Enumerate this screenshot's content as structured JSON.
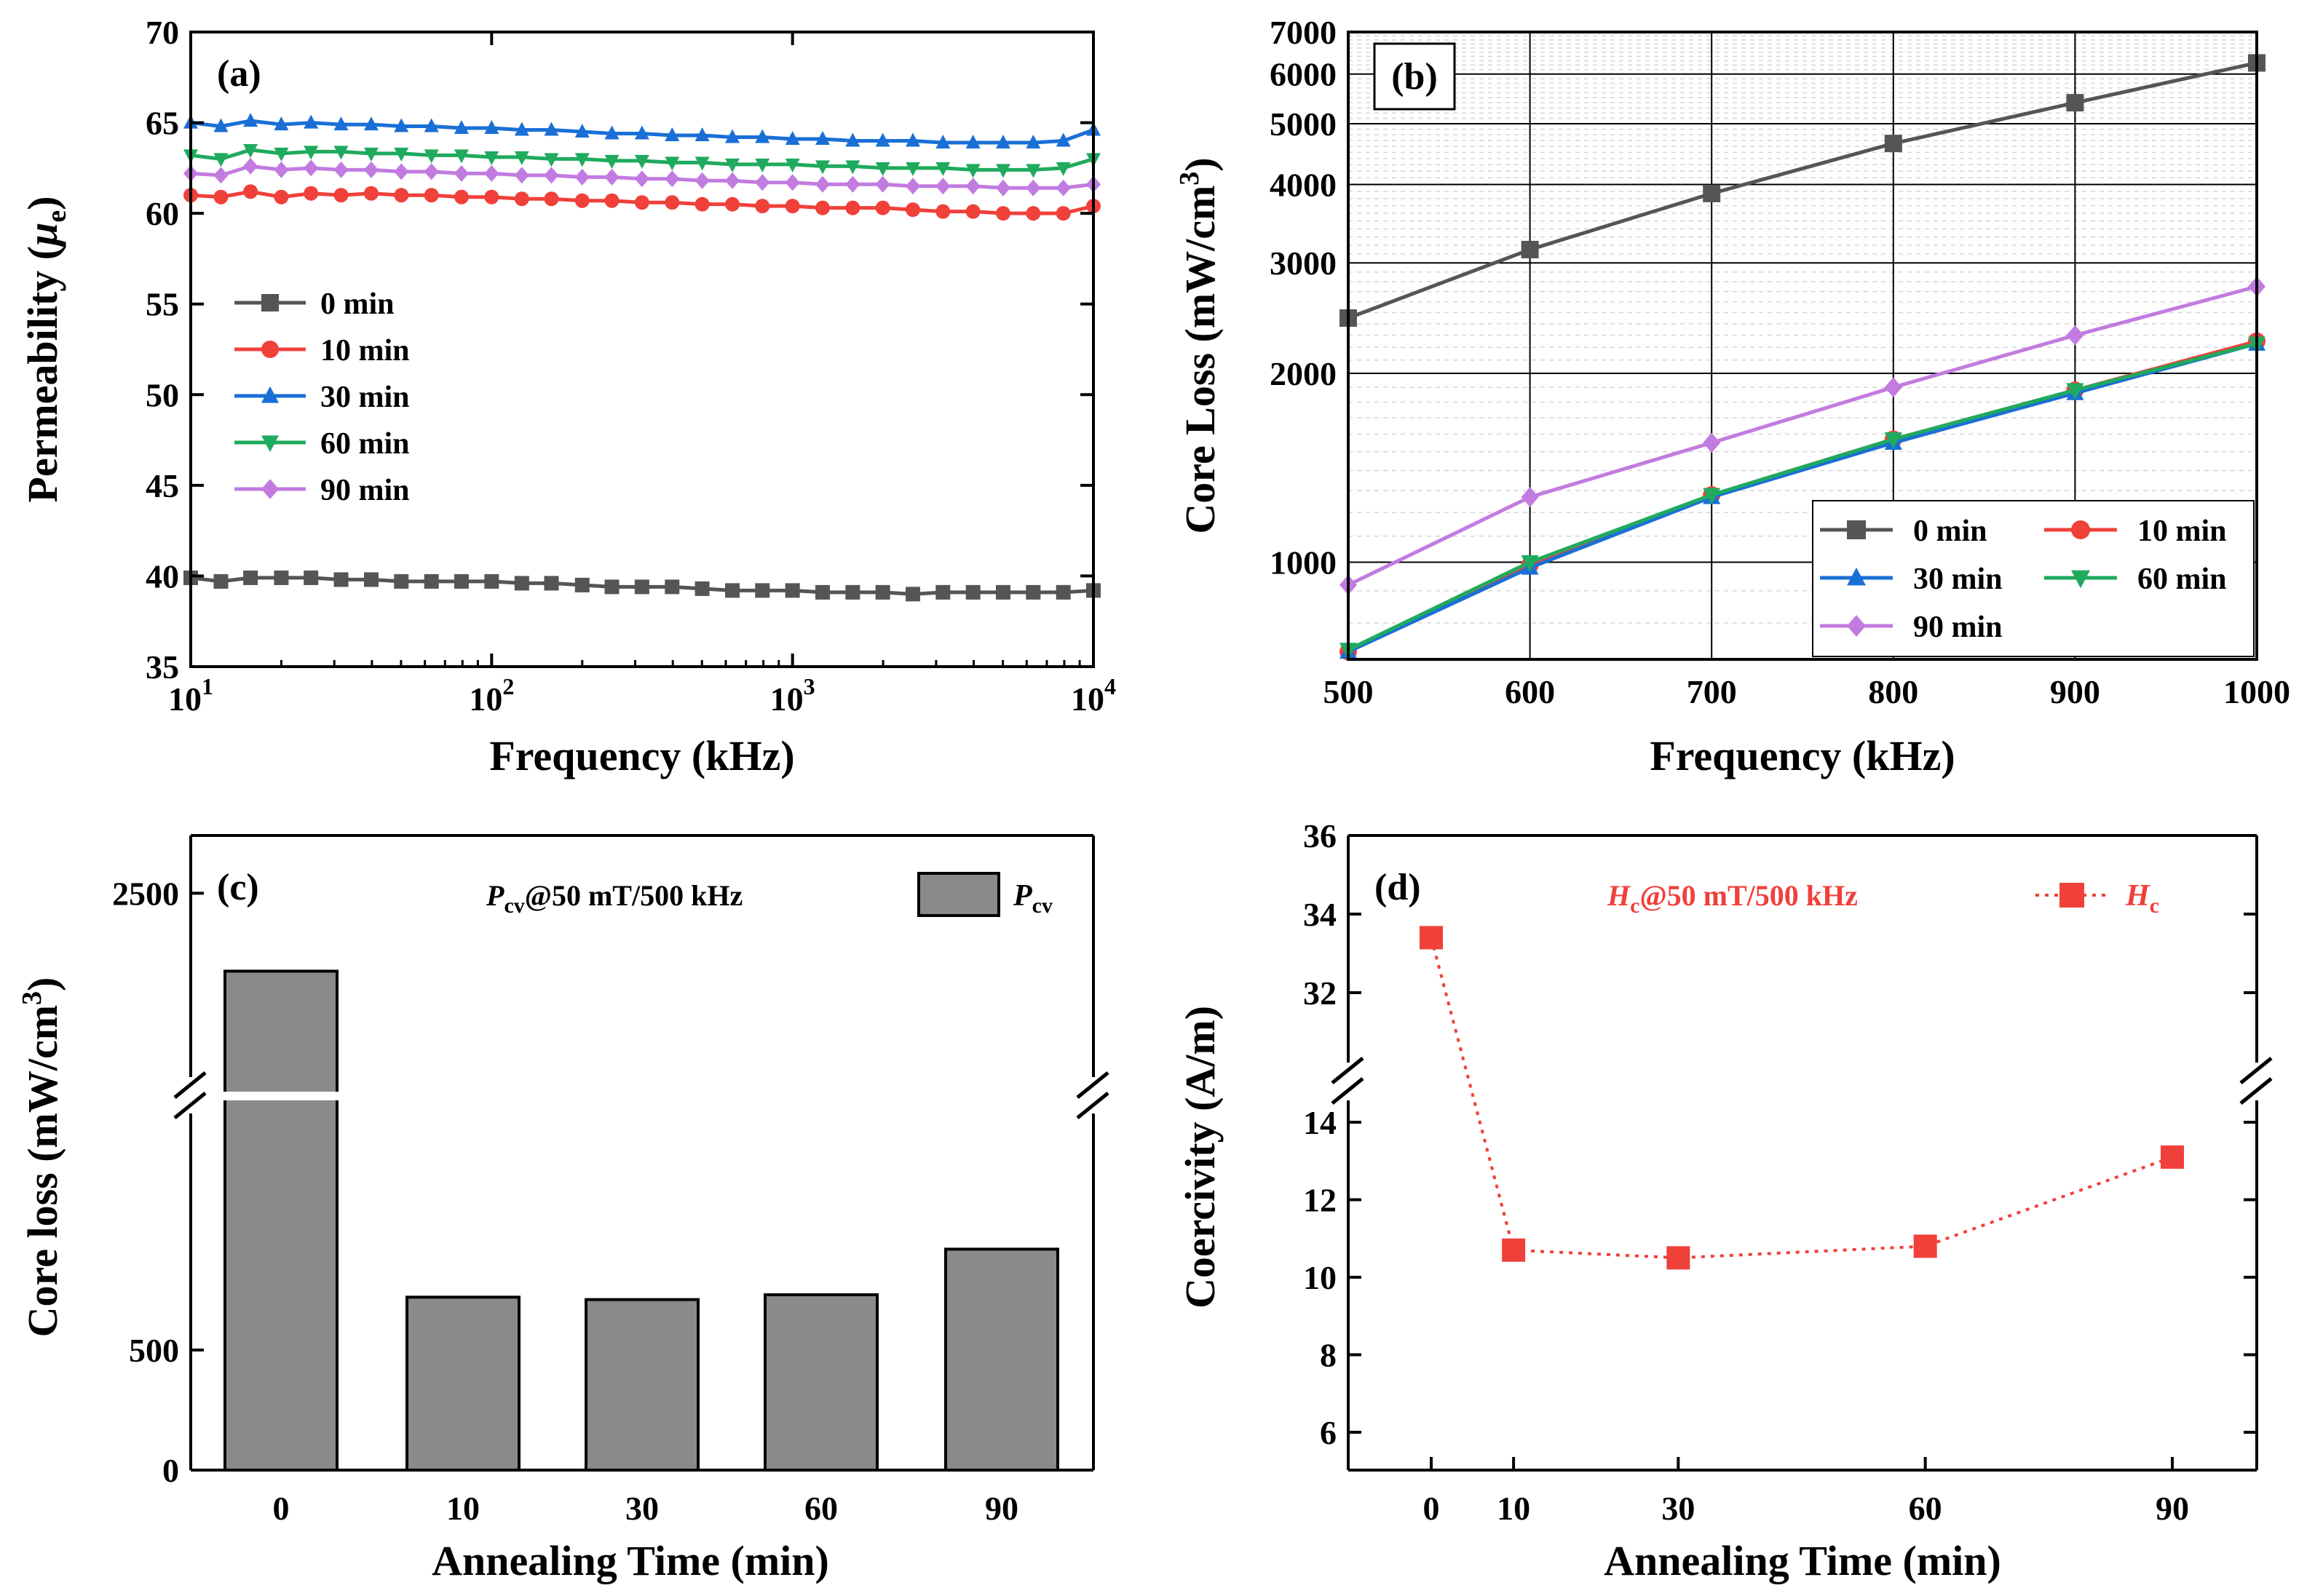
{
  "chart_data": [
    {
      "panel": "(a)",
      "type": "line",
      "xscale": "log",
      "xlabel": "Frequency (kHz)",
      "ylabel_main": "Permeability (",
      "ylabel_sym": "μ",
      "ylabel_sub": "e",
      "ylabel_end": ")",
      "xlim": [
        10,
        10000
      ],
      "ylim": [
        35,
        70
      ],
      "xticks": [
        {
          "value": 10,
          "base": "10",
          "exp": "1"
        },
        {
          "value": 100,
          "base": "10",
          "exp": "2"
        },
        {
          "value": 1000,
          "base": "10",
          "exp": "3"
        },
        {
          "value": 10000,
          "base": "10",
          "exp": "4"
        }
      ],
      "yticks": [
        35,
        40,
        45,
        50,
        55,
        60,
        65,
        70
      ],
      "x": [
        10,
        12.6,
        15.8,
        20,
        25.1,
        31.6,
        39.8,
        50.1,
        63.1,
        79.4,
        100,
        126,
        158,
        200,
        251,
        316,
        398,
        501,
        631,
        794,
        1000,
        1259,
        1585,
        1995,
        2512,
        3162,
        3981,
        5012,
        6310,
        7943,
        10000
      ],
      "series": [
        {
          "name": "0 min",
          "color": "#555555",
          "marker": "square",
          "values": [
            39.9,
            39.7,
            39.9,
            39.9,
            39.9,
            39.8,
            39.8,
            39.7,
            39.7,
            39.7,
            39.7,
            39.6,
            39.6,
            39.5,
            39.4,
            39.4,
            39.4,
            39.3,
            39.2,
            39.2,
            39.2,
            39.1,
            39.1,
            39.1,
            39.0,
            39.1,
            39.1,
            39.1,
            39.1,
            39.1,
            39.2
          ]
        },
        {
          "name": "10 min",
          "color": "#f0403a",
          "marker": "circle",
          "values": [
            61.0,
            60.9,
            61.2,
            60.9,
            61.1,
            61.0,
            61.1,
            61.0,
            61.0,
            60.9,
            60.9,
            60.8,
            60.8,
            60.7,
            60.7,
            60.6,
            60.6,
            60.5,
            60.5,
            60.4,
            60.4,
            60.3,
            60.3,
            60.3,
            60.2,
            60.1,
            60.1,
            60.0,
            60.0,
            60.0,
            60.4
          ]
        },
        {
          "name": "30 min",
          "color": "#1a6fd6",
          "marker": "triangle",
          "values": [
            65.0,
            64.8,
            65.1,
            64.9,
            65.0,
            64.9,
            64.9,
            64.8,
            64.8,
            64.7,
            64.7,
            64.6,
            64.6,
            64.5,
            64.4,
            64.4,
            64.3,
            64.3,
            64.2,
            64.2,
            64.1,
            64.1,
            64.0,
            64.0,
            64.0,
            63.9,
            63.9,
            63.9,
            63.9,
            64.0,
            64.6
          ]
        },
        {
          "name": "60 min",
          "color": "#1faa5e",
          "marker": "triangle-down",
          "values": [
            63.2,
            63.0,
            63.5,
            63.3,
            63.4,
            63.4,
            63.3,
            63.3,
            63.2,
            63.2,
            63.1,
            63.1,
            63.0,
            63.0,
            62.9,
            62.9,
            62.8,
            62.8,
            62.7,
            62.7,
            62.7,
            62.6,
            62.6,
            62.5,
            62.5,
            62.5,
            62.4,
            62.4,
            62.4,
            62.5,
            63.0
          ]
        },
        {
          "name": "90 min",
          "color": "#c27be0",
          "marker": "diamond",
          "values": [
            62.2,
            62.1,
            62.6,
            62.4,
            62.5,
            62.4,
            62.4,
            62.3,
            62.3,
            62.2,
            62.2,
            62.1,
            62.1,
            62.0,
            62.0,
            61.9,
            61.9,
            61.8,
            61.8,
            61.7,
            61.7,
            61.6,
            61.6,
            61.6,
            61.5,
            61.5,
            61.5,
            61.4,
            61.4,
            61.4,
            61.6
          ]
        }
      ]
    },
    {
      "panel": "(b)",
      "type": "line",
      "yscale": "log",
      "xlabel": "Frequency (kHz)",
      "ylabel_main": "Core Loss (mW/cm",
      "ylabel_sup": "3",
      "ylabel_end": ")",
      "xlim": [
        500,
        1000
      ],
      "ylim": [
        700,
        7000
      ],
      "xticks": [
        500,
        600,
        700,
        800,
        900,
        1000
      ],
      "yticks": [
        1000,
        2000,
        3000,
        4000,
        5000,
        6000,
        7000
      ],
      "grid": true,
      "x": [
        500,
        600,
        700,
        800,
        900,
        1000
      ],
      "series": [
        {
          "name": "0 min",
          "color": "#555555",
          "marker": "square",
          "values": [
            2450,
            3150,
            3870,
            4650,
            5400,
            6250
          ]
        },
        {
          "name": "10 min",
          "color": "#f0403a",
          "marker": "circle",
          "values": [
            720,
            990,
            1280,
            1570,
            1880,
            2250
          ]
        },
        {
          "name": "30 min",
          "color": "#1a6fd6",
          "marker": "triangle",
          "values": [
            720,
            980,
            1270,
            1550,
            1860,
            2230
          ]
        },
        {
          "name": "60 min",
          "color": "#1faa5e",
          "marker": "triangle-down",
          "values": [
            725,
            1000,
            1280,
            1570,
            1880,
            2230
          ]
        },
        {
          "name": "90 min",
          "color": "#c27be0",
          "marker": "diamond",
          "values": [
            920,
            1270,
            1550,
            1900,
            2300,
            2750
          ]
        }
      ]
    },
    {
      "panel": "(c)",
      "type": "bar",
      "xlabel": "Annealing Time (min)",
      "ylabel_main": "Core loss (mW/cm",
      "ylabel_sup": "3",
      "ylabel_end": ")",
      "categories": [
        "0",
        "10",
        "30",
        "60",
        "90"
      ],
      "values": [
        2230,
        720,
        710,
        730,
        920
      ],
      "yticks": [
        0,
        500,
        2500
      ],
      "axis_break": true,
      "note_main": "P",
      "note_sub": "cv",
      "note_rest": "@50 mT/500 kHz",
      "legend_main": "P",
      "legend_sub": "cv",
      "bar_color": "#8a8a8a"
    },
    {
      "panel": "(d)",
      "type": "scatter",
      "xlabel": "Annealing Time (min)",
      "ylabel": "Coercivity (A/m)",
      "x": [
        0,
        10,
        30,
        60,
        90
      ],
      "values": [
        33.4,
        10.7,
        10.5,
        10.8,
        13.1
      ],
      "xticks": [
        0,
        10,
        30,
        60,
        90
      ],
      "yticks": [
        6,
        8,
        10,
        12,
        14,
        32,
        34,
        36
      ],
      "axis_break": true,
      "note_main": "H",
      "note_sub": "c",
      "note_rest": "@50 mT/500 kHz",
      "legend_main": "H",
      "legend_sub": "c",
      "color": "#f0403a"
    }
  ]
}
